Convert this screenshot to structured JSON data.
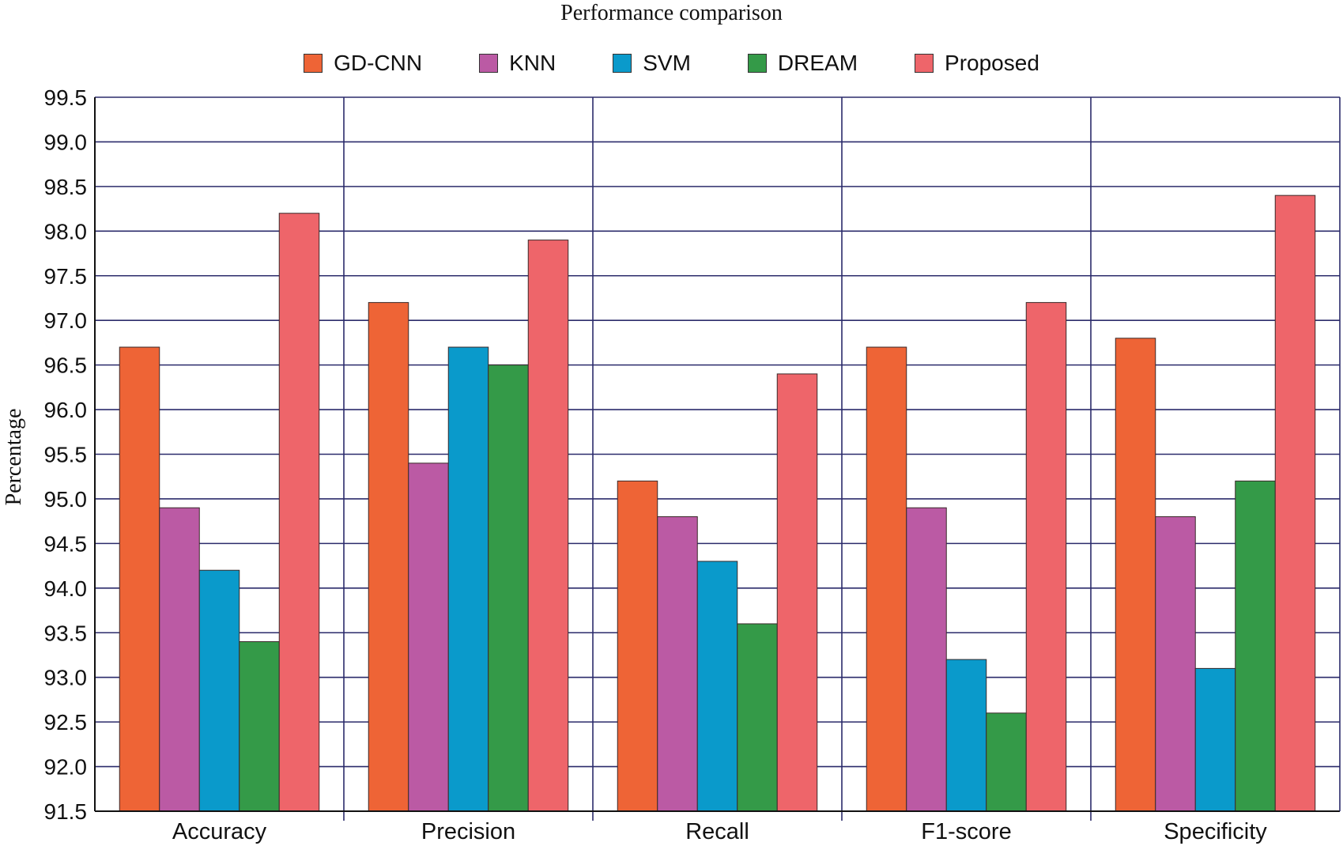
{
  "chart_data": {
    "type": "bar",
    "title": "Performance comparison",
    "xlabel": "",
    "ylabel": "Percentage",
    "ylim": [
      91.5,
      99.5
    ],
    "ytick_step": 0.5,
    "grid": true,
    "legend_position": "top-center",
    "categories": [
      "Accuracy",
      "Precision",
      "Recall",
      "F1-score",
      "Specificity"
    ],
    "series": [
      {
        "name": "GD-CNN",
        "color": "#EE6436",
        "values": [
          96.7,
          97.2,
          95.2,
          96.7,
          96.8
        ]
      },
      {
        "name": "KNN",
        "color": "#BB5AA4",
        "values": [
          94.9,
          95.4,
          94.8,
          94.9,
          94.8
        ]
      },
      {
        "name": "SVM",
        "color": "#0A9ACB",
        "values": [
          94.2,
          96.7,
          94.3,
          93.2,
          93.1
        ]
      },
      {
        "name": "DREAM",
        "color": "#349A48",
        "values": [
          93.4,
          96.5,
          93.6,
          92.6,
          95.2
        ]
      },
      {
        "name": "Proposed",
        "color": "#EE656A",
        "values": [
          98.2,
          97.9,
          96.4,
          97.2,
          98.4
        ]
      }
    ]
  }
}
